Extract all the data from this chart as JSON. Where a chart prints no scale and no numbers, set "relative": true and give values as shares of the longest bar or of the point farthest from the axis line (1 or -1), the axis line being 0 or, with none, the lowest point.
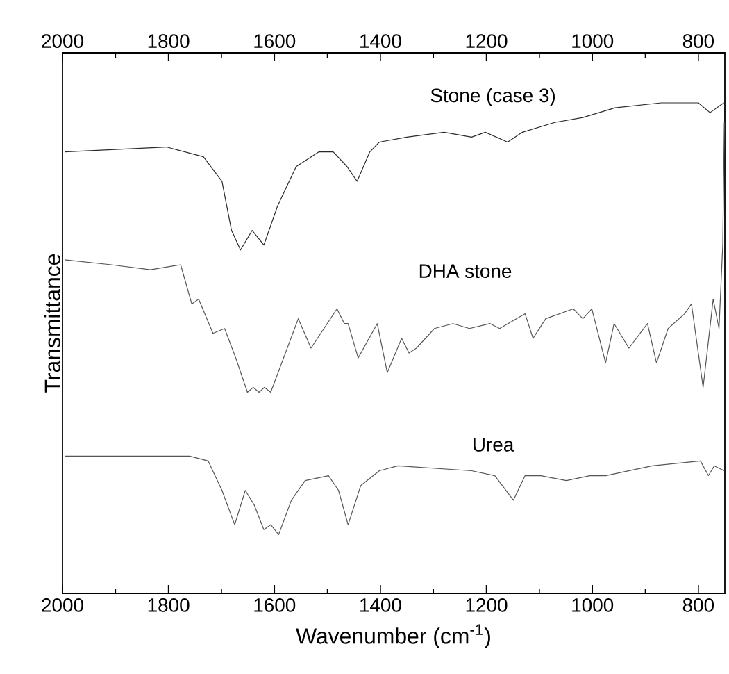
{
  "chart_data": {
    "type": "line",
    "relative": true,
    "xlabel": "Wavenumber (cm$^{-1}$)",
    "ylabel": "Transmittance",
    "xlim": [
      2000,
      750
    ],
    "xticks": [
      2000,
      {
        "value": 1900,
        "label": null
      },
      1800,
      {
        "value": 1700,
        "label": null
      },
      1600,
      {
        "value": 1500,
        "label": null
      },
      1400,
      {
        "value": 1300,
        "label": null
      },
      1200,
      {
        "value": 1100,
        "label": null
      },
      1000,
      {
        "value": 900,
        "label": null
      },
      800
    ],
    "x2lim": [
      2000,
      750
    ],
    "x2ticks": [
      2000,
      {
        "value": 1900,
        "label": null
      },
      1800,
      {
        "value": 1700,
        "label": null
      },
      1600,
      {
        "value": 1500,
        "label": null
      },
      1400,
      {
        "value": 1300,
        "label": null
      },
      1200,
      {
        "value": 1100,
        "label": null
      },
      1000,
      {
        "value": 900,
        "label": null
      },
      800
    ],
    "tick_labels": "x",
    "grid": false,
    "legend": false,
    "series": [
      {
        "name": "Stone (case 3)",
        "color": "#2a2a2a",
        "x": [
          1996,
          1804,
          1734,
          1699,
          1681,
          1664,
          1642,
          1620,
          1594,
          1559,
          1516,
          1489,
          1463,
          1444,
          1420,
          1402,
          1350,
          1280,
          1228,
          1202,
          1160,
          1132,
          1071,
          1018,
          957,
          870,
          800,
          778,
          765,
          752
        ],
        "values": [
          0.9,
          0.91,
          0.89,
          0.84,
          0.74,
          0.7,
          0.74,
          0.71,
          0.79,
          0.87,
          0.9,
          0.9,
          0.87,
          0.84,
          0.9,
          0.92,
          0.93,
          0.94,
          0.93,
          0.94,
          0.92,
          0.94,
          0.96,
          0.97,
          0.99,
          1.0,
          1.0,
          0.98,
          0.99,
          1.0
        ]
      },
      {
        "name": "DHA stone",
        "color": "#555555",
        "x": [
          1996,
          1908,
          1834,
          1777,
          1756,
          1743,
          1716,
          1694,
          1673,
          1651,
          1640,
          1629,
          1619,
          1607,
          1555,
          1531,
          1482,
          1468,
          1461,
          1442,
          1406,
          1387,
          1360,
          1346,
          1332,
          1298,
          1263,
          1232,
          1193,
          1175,
          1127,
          1112,
          1088,
          1036,
          1018,
          1001,
          975,
          959,
          931,
          896,
          879,
          857,
          826,
          813,
          791,
          772,
          761,
          754,
          751
        ],
        "values": [
          0.68,
          0.67,
          0.66,
          0.67,
          0.59,
          0.6,
          0.53,
          0.54,
          0.48,
          0.41,
          0.42,
          0.41,
          0.42,
          0.41,
          0.56,
          0.5,
          0.58,
          0.55,
          0.55,
          0.48,
          0.55,
          0.45,
          0.52,
          0.49,
          0.5,
          0.54,
          0.55,
          0.54,
          0.55,
          0.54,
          0.57,
          0.52,
          0.56,
          0.58,
          0.56,
          0.58,
          0.47,
          0.55,
          0.5,
          0.55,
          0.47,
          0.54,
          0.57,
          0.59,
          0.42,
          0.6,
          0.54,
          0.71,
          0.96
        ]
      },
      {
        "name": "Urea",
        "color": "#555555",
        "x": [
          1996,
          1760,
          1725,
          1699,
          1675,
          1655,
          1638,
          1620,
          1607,
          1592,
          1568,
          1542,
          1498,
          1479,
          1461,
          1437,
          1402,
          1367,
          1228,
          1184,
          1149,
          1127,
          1097,
          1049,
          1005,
          997,
          975,
          887,
          796,
          781,
          770,
          751
        ],
        "values": [
          0.28,
          0.28,
          0.27,
          0.21,
          0.14,
          0.21,
          0.18,
          0.13,
          0.14,
          0.12,
          0.19,
          0.23,
          0.24,
          0.21,
          0.14,
          0.22,
          0.25,
          0.26,
          0.25,
          0.24,
          0.19,
          0.24,
          0.24,
          0.23,
          0.24,
          0.24,
          0.24,
          0.26,
          0.27,
          0.24,
          0.26,
          0.25
        ]
      }
    ]
  }
}
